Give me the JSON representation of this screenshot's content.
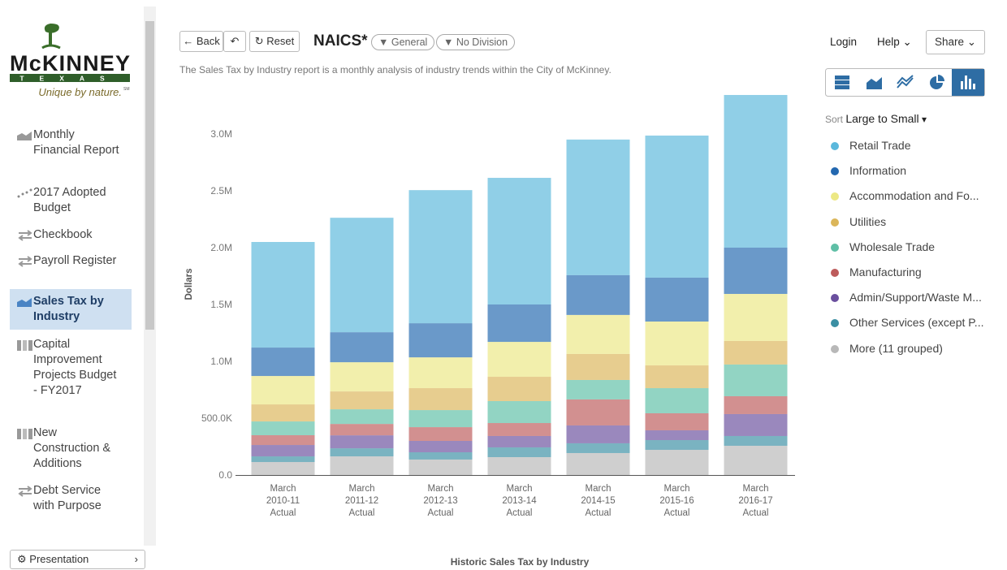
{
  "logo": {
    "name": "McKINNEY",
    "state": "TEXAS",
    "tagline": "Unique by nature.",
    "mark": "SM"
  },
  "nav": {
    "items": [
      {
        "label": "Monthly Financial Report"
      },
      {
        "label": "2017 Adopted Budget"
      },
      {
        "label": "Checkbook"
      },
      {
        "label": "Payroll Register"
      },
      {
        "label": "Sales Tax by Industry"
      },
      {
        "label": "Capital Improvement Projects Budget - FY2017"
      },
      {
        "label": "New Construction & Additions"
      },
      {
        "label": "Debt Service with Purpose"
      }
    ],
    "footer": "Presentation"
  },
  "toolbar": {
    "back": "Back",
    "reset": "Reset",
    "title": "NAICS*",
    "filters": [
      "General",
      "No Division"
    ]
  },
  "description": "The Sales Tax by Industry report is a monthly analysis of industry trends within the City of McKinney.",
  "top_menu": {
    "login": "Login",
    "help": "Help",
    "share": "Share"
  },
  "sort": {
    "label": "Sort",
    "value": "Large to Small"
  },
  "chart_data": {
    "type": "stacked_bar",
    "y_label": "Dollars",
    "x_label": "Historic Sales Tax by Industry",
    "categories": [
      [
        "March",
        "2010-11",
        "Actual"
      ],
      [
        "March",
        "2011-12",
        "Actual"
      ],
      [
        "March",
        "2012-13",
        "Actual"
      ],
      [
        "March",
        "2013-14",
        "Actual"
      ],
      [
        "March",
        "2014-15",
        "Actual"
      ],
      [
        "March",
        "2015-16",
        "Actual"
      ],
      [
        "March",
        "2016-17",
        "Actual"
      ]
    ],
    "ylim": [
      0,
      3400000
    ],
    "yticks": [
      {
        "value": 0,
        "label": "0.0"
      },
      {
        "value": 500000,
        "label": "500.0K"
      },
      {
        "value": 1000000,
        "label": "1.0M"
      },
      {
        "value": 1500000,
        "label": "1.5M"
      },
      {
        "value": 2000000,
        "label": "2.0M"
      },
      {
        "value": 2500000,
        "label": "2.5M"
      },
      {
        "value": 3000000,
        "label": "3.0M"
      }
    ],
    "series": [
      {
        "name": "Retail Trade",
        "color": "#5bb8dc",
        "values": [
          929000,
          1007000,
          1171000,
          1114000,
          1193000,
          1250000,
          1343000
        ]
      },
      {
        "name": "Information",
        "color": "#2368b0",
        "values": [
          250000,
          264000,
          300000,
          329000,
          350000,
          386000,
          407000
        ]
      },
      {
        "name": "Accommodation and Fo...",
        "color": "#ece884",
        "values": [
          250000,
          257000,
          271000,
          307000,
          343000,
          386000,
          414000
        ]
      },
      {
        "name": "Utilities",
        "color": "#dbb65a",
        "values": [
          150000,
          157000,
          193000,
          214000,
          229000,
          200000,
          207000
        ]
      },
      {
        "name": "Wholesale Trade",
        "color": "#5fbfa6",
        "values": [
          121000,
          129000,
          150000,
          193000,
          171000,
          221000,
          279000
        ]
      },
      {
        "name": "Manufacturing",
        "color": "#bd5b5b",
        "values": [
          86000,
          100000,
          121000,
          114000,
          229000,
          150000,
          157000
        ]
      },
      {
        "name": "Admin/Support/Waste M...",
        "color": "#6a4f9e",
        "values": [
          100000,
          114000,
          100000,
          100000,
          157000,
          86000,
          193000
        ]
      },
      {
        "name": "Other Services (except P...",
        "color": "#3b8fa3",
        "values": [
          50000,
          71000,
          64000,
          86000,
          86000,
          86000,
          86000
        ]
      },
      {
        "name": "More (11 grouped)",
        "color": "#b8b8b8",
        "values": [
          114000,
          164000,
          136000,
          157000,
          193000,
          221000,
          257000
        ]
      }
    ]
  }
}
